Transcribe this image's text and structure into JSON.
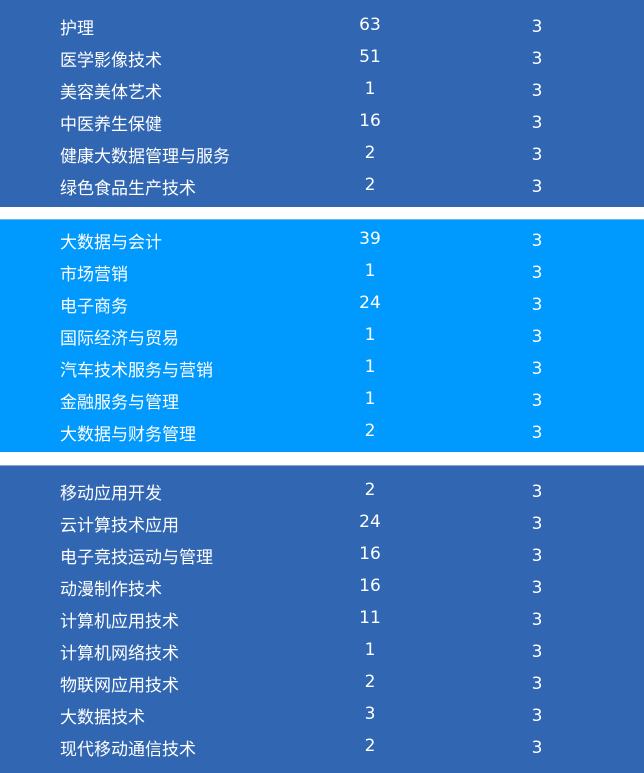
{
  "groups": [
    {
      "color": "#3166b2",
      "rows": [
        [
          "护理",
          "63",
          "3"
        ],
        [
          "医学影像技术",
          "51",
          "3"
        ],
        [
          "美容美体艺术",
          "1",
          "3"
        ],
        [
          "中医养生保健",
          "16",
          "3"
        ],
        [
          "健康大数据管理与服务",
          "2",
          "3"
        ],
        [
          "绿色食品生产技术",
          "2",
          "3"
        ]
      ]
    },
    {
      "color": "#0099fe",
      "rows": [
        [
          "大数据与会计",
          "39",
          "3"
        ],
        [
          "市场营销",
          "1",
          "3"
        ],
        [
          "电子商务",
          "24",
          "3"
        ],
        [
          "国际经济与贸易",
          "1",
          "3"
        ],
        [
          "汽车技术服务与营销",
          "1",
          "3"
        ],
        [
          "金融服务与管理",
          "1",
          "3"
        ],
        [
          "大数据与财务管理",
          "2",
          "3"
        ]
      ]
    },
    {
      "color": "#3166b2",
      "rows": [
        [
          "移动应用开发",
          "2",
          "3"
        ],
        [
          "云计算技术应用",
          "24",
          "3"
        ],
        [
          "电子竞技运动与管理",
          "16",
          "3"
        ],
        [
          "动漫制作技术",
          "16",
          "3"
        ],
        [
          "计算机应用技术",
          "11",
          "3"
        ],
        [
          "计算机网络技术",
          "1",
          "3"
        ],
        [
          "物联网应用技术",
          "2",
          "3"
        ],
        [
          "大数据技术",
          "3",
          "3"
        ],
        [
          "现代移动通信技术",
          "2",
          "3"
        ]
      ]
    }
  ]
}
